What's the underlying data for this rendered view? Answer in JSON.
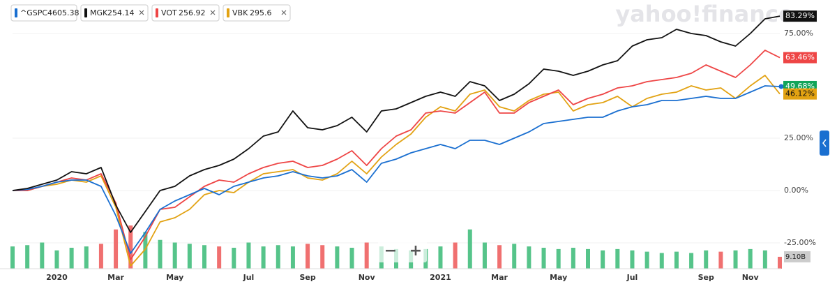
{
  "chart_data": {
    "type": "line",
    "watermark": "yahoo!finance",
    "categories": [
      null,
      null,
      null,
      "2020",
      null,
      null,
      null,
      "Mar",
      null,
      null,
      null,
      "May",
      null,
      null,
      null,
      null,
      "Jul",
      null,
      null,
      null,
      "Sep",
      null,
      null,
      null,
      "Nov",
      null,
      null,
      null,
      null,
      "2021",
      null,
      null,
      null,
      "Mar",
      null,
      null,
      null,
      "May",
      null,
      null,
      null,
      null,
      "Jul",
      null,
      null,
      null,
      null,
      "Sep",
      null,
      null,
      "Nov",
      null,
      null
    ],
    "ylim": [
      -37.33,
      91
    ],
    "yticks": [
      {
        "value": 75,
        "label": "75.00%"
      },
      {
        "value": 25,
        "label": "25.00%"
      },
      {
        "value": 0,
        "label": "0.00%"
      },
      {
        "value": -25,
        "label": "-25.00%"
      }
    ],
    "grid": true,
    "series": [
      {
        "name": "^GSPC",
        "price": 4605.38,
        "color": "#1a6fd0",
        "end_label": "49.68%",
        "label_color": "#12a55a",
        "values": [
          0,
          0.5,
          2,
          4,
          5,
          5,
          2,
          -12,
          -30,
          -20,
          -9,
          -5,
          -2,
          1,
          -2,
          2,
          4,
          6,
          7,
          9,
          7,
          6,
          7,
          10,
          4,
          13,
          15,
          18,
          20,
          22,
          20,
          24,
          24,
          22,
          25,
          28,
          32,
          33,
          34,
          35,
          35,
          38,
          40,
          41,
          43,
          43,
          44,
          45,
          44,
          44,
          47,
          50,
          49.68
        ]
      },
      {
        "name": "MGK",
        "price": 254.14,
        "color": "#111111",
        "end_label": "83.29%",
        "label_color": "#111111",
        "removable": true,
        "values": [
          0,
          1,
          3,
          5,
          9,
          8,
          11,
          -7,
          -20,
          -10,
          0,
          2,
          7,
          10,
          12,
          15,
          20,
          26,
          28,
          38,
          30,
          29,
          31,
          35,
          28,
          38,
          39,
          42,
          45,
          47,
          45,
          52,
          50,
          43,
          46,
          51,
          58,
          57,
          55,
          57,
          60,
          62,
          69,
          72,
          73,
          77,
          75,
          74,
          71,
          69,
          75,
          82,
          83.29
        ]
      },
      {
        "name": "VOT",
        "price": 256.92,
        "color": "#ee4545",
        "end_label": "63.46%",
        "label_color": "#ee4545",
        "removable": true,
        "values": [
          0,
          0,
          2,
          4,
          6,
          5,
          8,
          -6,
          -33,
          -22,
          -9,
          -8,
          -3,
          2,
          5,
          4,
          8,
          11,
          13,
          14,
          11,
          12,
          15,
          19,
          12,
          20,
          26,
          29,
          37,
          38,
          37,
          42,
          47,
          37,
          37,
          42,
          45,
          48,
          41,
          44,
          46,
          49,
          50,
          52,
          53,
          54,
          56,
          60,
          57,
          54,
          60,
          67,
          63.46
        ]
      },
      {
        "name": "VBK",
        "price": 295.6,
        "color": "#e2a212",
        "end_label": "46.12%",
        "label_color": "#e2a212",
        "removable": true,
        "values": [
          0,
          0,
          2,
          3,
          5,
          4,
          7,
          -8,
          -36,
          -28,
          -15,
          -13,
          -9,
          -2,
          0,
          -1,
          4,
          8,
          9,
          10,
          6,
          5,
          8,
          14,
          8,
          16,
          22,
          27,
          35,
          40,
          38,
          46,
          48,
          40,
          38,
          43,
          46,
          47,
          38,
          41,
          42,
          45,
          40,
          44,
          46,
          47,
          50,
          48,
          49,
          44,
          50,
          55,
          46.12
        ]
      }
    ],
    "volume": {
      "ylim": [
        0,
        40
      ],
      "up_color": "#56c48a",
      "down_color": "#f07070",
      "last_label": "9.10B",
      "values": [
        17,
        18,
        20,
        14,
        16,
        17,
        19,
        30,
        33,
        28,
        22,
        20,
        19,
        18,
        17,
        16,
        20,
        17,
        18,
        17,
        19,
        18,
        17,
        16,
        20,
        17,
        15,
        14,
        15,
        17,
        20,
        30,
        20,
        18,
        19,
        17,
        16,
        15,
        16,
        15,
        14,
        15,
        14,
        13,
        12,
        13,
        12,
        14,
        13,
        14,
        15,
        14,
        9.1
      ]
    },
    "zoom_out": "−",
    "zoom_in": "+"
  }
}
